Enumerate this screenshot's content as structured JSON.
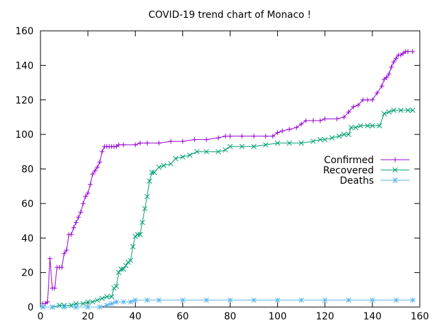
{
  "chart_data": {
    "type": "line",
    "title": "COVID-19 trend chart of Monaco !",
    "xlabel": "",
    "ylabel": "",
    "xlim": [
      0,
      160
    ],
    "ylim": [
      0,
      160
    ],
    "x_ticks": [
      0,
      20,
      40,
      60,
      80,
      100,
      120,
      140,
      160
    ],
    "y_ticks": [
      0,
      20,
      40,
      60,
      80,
      100,
      120,
      140,
      160
    ],
    "grid": false,
    "legend_position": "right",
    "series": [
      {
        "name": "Confirmed",
        "color": "#9400d3",
        "marker": "plus",
        "points": [
          [
            1,
            2
          ],
          [
            2,
            2
          ],
          [
            3,
            3
          ],
          [
            4,
            28
          ],
          [
            5,
            11
          ],
          [
            6,
            11
          ],
          [
            7,
            23
          ],
          [
            8,
            23
          ],
          [
            9,
            23
          ],
          [
            10,
            31
          ],
          [
            11,
            33
          ],
          [
            12,
            42
          ],
          [
            13,
            42
          ],
          [
            14,
            46
          ],
          [
            15,
            49
          ],
          [
            16,
            52
          ],
          [
            17,
            55
          ],
          [
            18,
            60
          ],
          [
            19,
            64
          ],
          [
            20,
            66
          ],
          [
            21,
            71
          ],
          [
            22,
            77
          ],
          [
            23,
            79
          ],
          [
            24,
            81
          ],
          [
            25,
            84
          ],
          [
            26,
            90
          ],
          [
            27,
            93
          ],
          [
            28,
            93
          ],
          [
            29,
            93
          ],
          [
            30,
            93
          ],
          [
            31,
            93
          ],
          [
            32,
            93
          ],
          [
            33,
            94
          ],
          [
            35,
            94
          ],
          [
            40,
            94
          ],
          [
            42,
            95
          ],
          [
            45,
            95
          ],
          [
            50,
            95
          ],
          [
            55,
            96
          ],
          [
            60,
            96
          ],
          [
            65,
            97
          ],
          [
            70,
            97
          ],
          [
            75,
            98
          ],
          [
            78,
            99
          ],
          [
            80,
            99
          ],
          [
            85,
            99
          ],
          [
            90,
            99
          ],
          [
            95,
            99
          ],
          [
            98,
            99
          ],
          [
            100,
            101
          ],
          [
            102,
            102
          ],
          [
            105,
            103
          ],
          [
            108,
            104
          ],
          [
            110,
            106
          ],
          [
            112,
            108
          ],
          [
            115,
            108
          ],
          [
            118,
            108
          ],
          [
            120,
            109
          ],
          [
            125,
            109
          ],
          [
            128,
            110
          ],
          [
            130,
            113
          ],
          [
            132,
            116
          ],
          [
            134,
            117
          ],
          [
            136,
            120
          ],
          [
            138,
            120
          ],
          [
            140,
            120
          ],
          [
            142,
            124
          ],
          [
            144,
            128
          ],
          [
            145,
            132
          ],
          [
            146,
            133
          ],
          [
            147,
            135
          ],
          [
            148,
            139
          ],
          [
            149,
            142
          ],
          [
            150,
            144
          ],
          [
            151,
            146
          ],
          [
            152,
            146
          ],
          [
            153,
            147
          ],
          [
            154,
            148
          ],
          [
            155,
            148
          ],
          [
            157,
            148
          ]
        ]
      },
      {
        "name": "Recovered",
        "color": "#009e73",
        "marker": "x",
        "points": [
          [
            1,
            0
          ],
          [
            5,
            0
          ],
          [
            8,
            1
          ],
          [
            10,
            1
          ],
          [
            13,
            1
          ],
          [
            15,
            2
          ],
          [
            18,
            2
          ],
          [
            20,
            3
          ],
          [
            22,
            3
          ],
          [
            24,
            4
          ],
          [
            26,
            5
          ],
          [
            28,
            6
          ],
          [
            30,
            6
          ],
          [
            31,
            11
          ],
          [
            32,
            12
          ],
          [
            33,
            20
          ],
          [
            34,
            22
          ],
          [
            35,
            22
          ],
          [
            36,
            24
          ],
          [
            37,
            26
          ],
          [
            38,
            27
          ],
          [
            39,
            35
          ],
          [
            40,
            41
          ],
          [
            41,
            42
          ],
          [
            42,
            42
          ],
          [
            43,
            49
          ],
          [
            44,
            57
          ],
          [
            45,
            64
          ],
          [
            46,
            73
          ],
          [
            47,
            78
          ],
          [
            48,
            78
          ],
          [
            50,
            81
          ],
          [
            52,
            82
          ],
          [
            55,
            83
          ],
          [
            57,
            86
          ],
          [
            60,
            87
          ],
          [
            63,
            88
          ],
          [
            66,
            90
          ],
          [
            70,
            90
          ],
          [
            75,
            90
          ],
          [
            78,
            91
          ],
          [
            80,
            93
          ],
          [
            85,
            93
          ],
          [
            90,
            93
          ],
          [
            95,
            94
          ],
          [
            100,
            95
          ],
          [
            105,
            95
          ],
          [
            110,
            95
          ],
          [
            115,
            96
          ],
          [
            118,
            97
          ],
          [
            120,
            97
          ],
          [
            123,
            98
          ],
          [
            126,
            99
          ],
          [
            128,
            100
          ],
          [
            130,
            100
          ],
          [
            131,
            104
          ],
          [
            133,
            104
          ],
          [
            135,
            105
          ],
          [
            138,
            105
          ],
          [
            140,
            105
          ],
          [
            143,
            105
          ],
          [
            145,
            112
          ],
          [
            147,
            113
          ],
          [
            149,
            114
          ],
          [
            152,
            114
          ],
          [
            155,
            114
          ],
          [
            157,
            114
          ]
        ]
      },
      {
        "name": "Deaths",
        "color": "#56b4e9",
        "marker": "star",
        "points": [
          [
            1,
            0
          ],
          [
            5,
            0
          ],
          [
            10,
            0
          ],
          [
            15,
            0
          ],
          [
            20,
            0
          ],
          [
            25,
            0
          ],
          [
            28,
            1
          ],
          [
            30,
            2
          ],
          [
            32,
            3
          ],
          [
            35,
            3
          ],
          [
            38,
            3
          ],
          [
            40,
            4
          ],
          [
            45,
            4
          ],
          [
            50,
            4
          ],
          [
            60,
            4
          ],
          [
            70,
            4
          ],
          [
            80,
            4
          ],
          [
            90,
            4
          ],
          [
            100,
            4
          ],
          [
            110,
            4
          ],
          [
            120,
            4
          ],
          [
            130,
            4
          ],
          [
            140,
            4
          ],
          [
            150,
            4
          ],
          [
            157,
            4
          ]
        ]
      }
    ]
  }
}
